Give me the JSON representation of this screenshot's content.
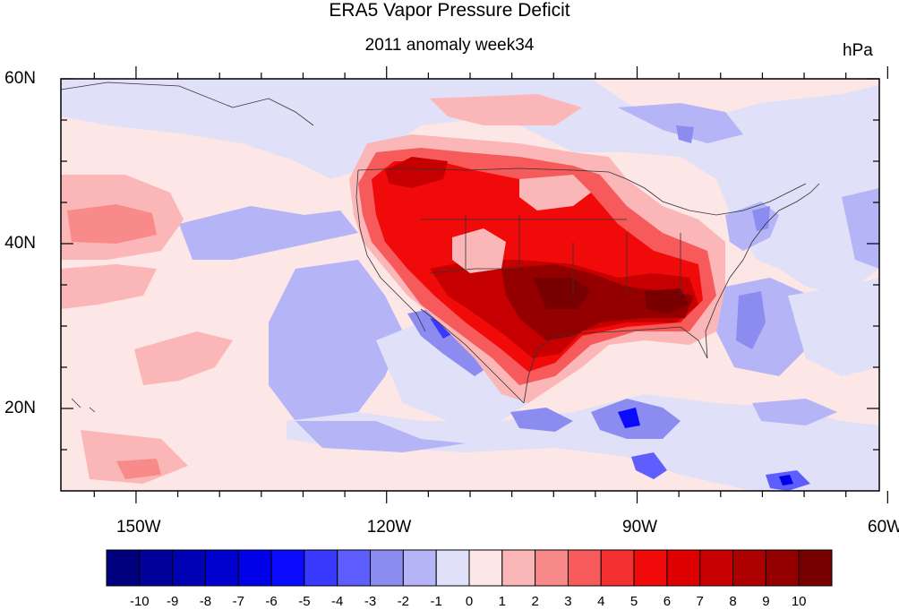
{
  "title": "ERA5 Vapor Pressure Deficit",
  "subtitle": "2011 anomaly week34",
  "units": "hPa",
  "lat_labels": [
    {
      "text": "60N",
      "lat": 60
    },
    {
      "text": "40N",
      "lat": 40
    },
    {
      "text": "20N",
      "lat": 20
    }
  ],
  "lon_labels": [
    {
      "text": "150W",
      "lon": -150
    },
    {
      "text": "120W",
      "lon": -120
    },
    {
      "text": "90W",
      "lon": -90
    },
    {
      "text": "60W",
      "lon": -60
    }
  ],
  "extent": {
    "lon_min": -159,
    "lon_max": -61,
    "lat_min": 10,
    "lat_max": 60
  },
  "colorbar": {
    "labels": [
      "-10",
      "-9",
      "-8",
      "-7",
      "-6",
      "-5",
      "-4",
      "-3",
      "-2",
      "-1",
      "0",
      "1",
      "2",
      "3",
      "4",
      "5",
      "6",
      "7",
      "8",
      "9",
      "10"
    ],
    "colors": [
      "#00007f",
      "#00009a",
      "#0000b4",
      "#0000cf",
      "#0000e9",
      "#0a0aff",
      "#3a3aff",
      "#5e5eff",
      "#8c8cf0",
      "#b4b4f6",
      "#e0e0f8",
      "#fde6e6",
      "#fbb7b7",
      "#f98a8a",
      "#f75a5a",
      "#f43131",
      "#f00a0a",
      "#de0000",
      "#c60000",
      "#ad0000",
      "#940000",
      "#780000"
    ]
  }
}
